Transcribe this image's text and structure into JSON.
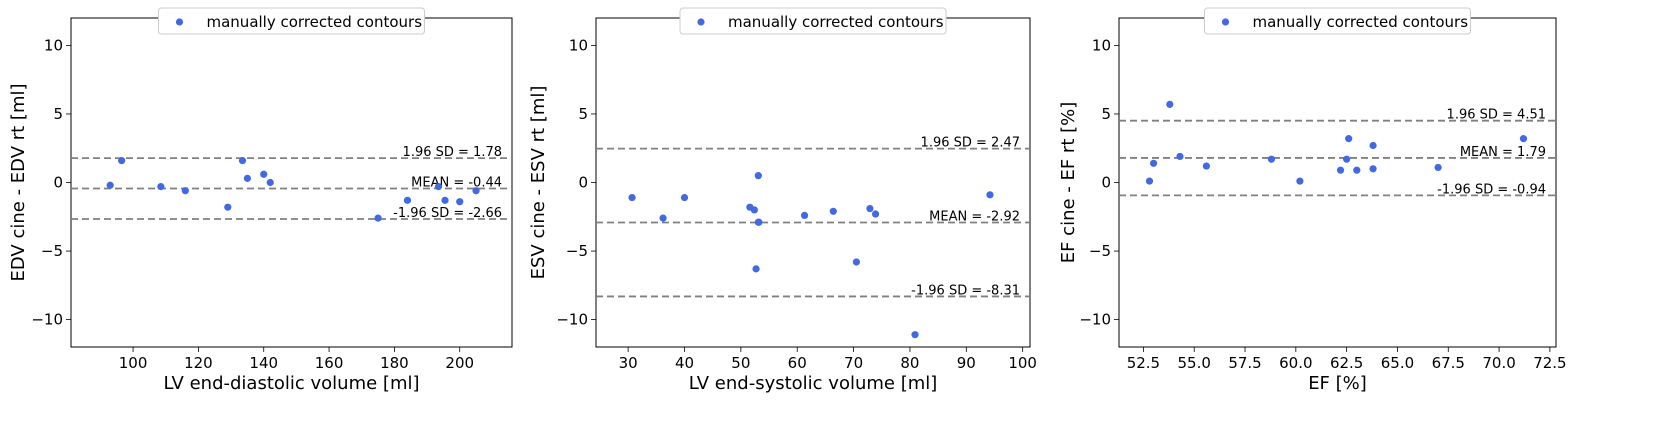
{
  "marker_color": "#4169E1",
  "line_color": "#808080",
  "chart_data": [
    {
      "type": "scatter",
      "xlabel": "LV end-diastolic volume [ml]",
      "ylabel": "EDV cine - EDV rt [ml]",
      "xlim": [
        81,
        216
      ],
      "ylim": [
        -12,
        12
      ],
      "xticks": [
        100,
        120,
        140,
        160,
        180,
        200
      ],
      "yticks": [
        -10,
        -5,
        0,
        5,
        10
      ],
      "ytick_labels": [
        "−10",
        "−5",
        "0",
        "5",
        "10"
      ],
      "legend": {
        "label": "manually corrected contours",
        "position": "top-center"
      },
      "series": [
        {
          "name": "manually corrected contours",
          "x": [
            93,
            96.5,
            108.5,
            116,
            129,
            133.5,
            135,
            140,
            142,
            175,
            184,
            193.5,
            195.5,
            200,
            205
          ],
          "y": [
            -0.2,
            1.6,
            -0.3,
            -0.6,
            -1.8,
            1.6,
            0.3,
            0.6,
            0.0,
            -2.6,
            -1.3,
            -0.3,
            -1.3,
            -1.4,
            -0.6
          ]
        }
      ],
      "reference_lines": [
        {
          "y": 1.78,
          "label": "1.96 SD = 1.78"
        },
        {
          "y": -0.44,
          "label": "MEAN = -0.44"
        },
        {
          "y": -2.66,
          "label": "-1.96 SD = -2.66"
        }
      ]
    },
    {
      "type": "scatter",
      "xlabel": "LV end-systolic volume [ml]",
      "ylabel": "ESV cine - ESV rt [ml]",
      "xlim": [
        24.3,
        101.3
      ],
      "ylim": [
        -12,
        12
      ],
      "xticks": [
        30,
        40,
        50,
        60,
        70,
        80,
        90,
        100
      ],
      "yticks": [
        -10,
        -5,
        0,
        5,
        10
      ],
      "ytick_labels": [
        "−10",
        "−5",
        "0",
        "5",
        "10"
      ],
      "legend": {
        "label": "manually corrected contours",
        "position": "top-center"
      },
      "series": [
        {
          "name": "manually corrected contours",
          "x": [
            30.7,
            36.2,
            40,
            51.6,
            52.4,
            52.7,
            53.1,
            53.1,
            53.2,
            61.3,
            66.4,
            70.5,
            72.9,
            73.9,
            80.9,
            94.2
          ],
          "y": [
            -1.1,
            -2.6,
            -1.1,
            -1.8,
            -2.0,
            -6.3,
            0.5,
            -2.9,
            -2.9,
            -2.4,
            -2.1,
            -5.8,
            -1.9,
            -2.3,
            -11.1,
            -0.9
          ]
        }
      ],
      "reference_lines": [
        {
          "y": 2.47,
          "label": "1.96 SD = 2.47"
        },
        {
          "y": -2.92,
          "label": "MEAN = -2.92"
        },
        {
          "y": -8.31,
          "label": "-1.96 SD = -8.31"
        }
      ]
    },
    {
      "type": "scatter",
      "xlabel": "EF [%]",
      "ylabel": "EF cine - EF rt [%]",
      "xlim": [
        51.3,
        72.8
      ],
      "ylim": [
        -12,
        12
      ],
      "xticks": [
        52.5,
        55.0,
        57.5,
        60.0,
        62.5,
        65.0,
        67.5,
        70.0,
        72.5
      ],
      "xtick_labels": [
        "52.5",
        "55.0",
        "57.5",
        "60.0",
        "62.5",
        "65.0",
        "67.5",
        "70.0",
        "72.5"
      ],
      "yticks": [
        -10,
        -5,
        0,
        5,
        10
      ],
      "ytick_labels": [
        "−10",
        "−5",
        "0",
        "5",
        "10"
      ],
      "legend": {
        "label": "manually corrected contours",
        "position": "top-center"
      },
      "series": [
        {
          "name": "manually corrected contours",
          "x": [
            52.8,
            53.0,
            53.8,
            54.3,
            55.6,
            58.8,
            60.2,
            62.2,
            62.5,
            62.6,
            63.0,
            63.8,
            63.8,
            67.0,
            71.2
          ],
          "y": [
            0.1,
            1.4,
            5.7,
            1.9,
            1.2,
            1.7,
            0.1,
            0.9,
            1.7,
            3.2,
            0.9,
            1.0,
            2.7,
            1.1,
            3.2
          ]
        }
      ],
      "reference_lines": [
        {
          "y": 4.51,
          "label": "1.96 SD = 4.51"
        },
        {
          "y": 1.79,
          "label": "MEAN = 1.79"
        },
        {
          "y": -0.94,
          "label": "-1.96 SD = -0.94"
        }
      ]
    }
  ]
}
